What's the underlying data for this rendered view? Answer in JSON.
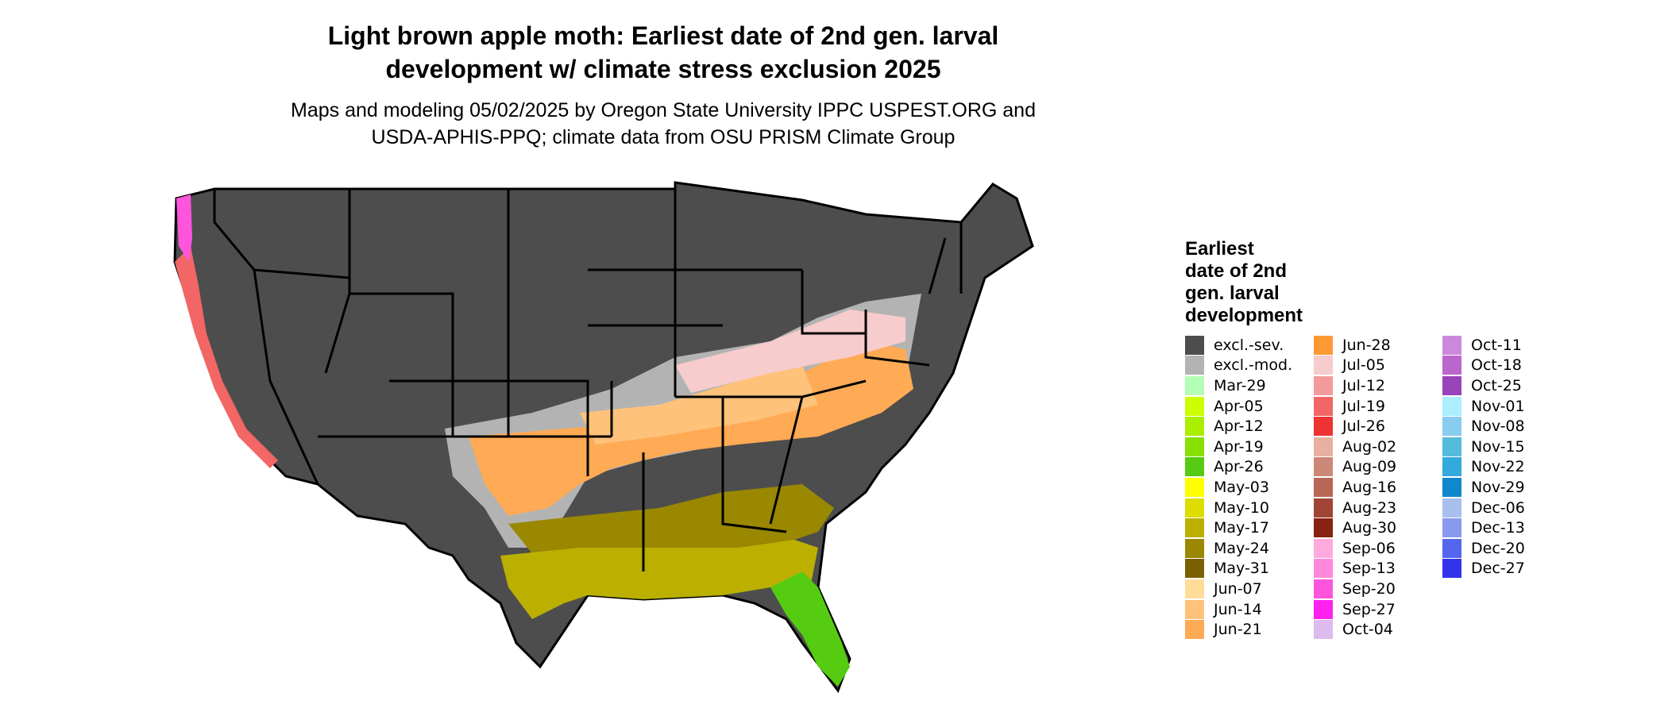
{
  "title_line1": "Light brown apple moth: Earliest date of 2nd gen. larval",
  "title_line2": "development w/ climate stress exclusion 2025",
  "subtitle_line1": "Maps and modeling 05/02/2025 by Oregon State University IPPC USPEST.ORG and",
  "subtitle_line2": "USDA-APHIS-PPQ; climate data from OSU PRISM Climate Group",
  "legend": {
    "title_lines": [
      "Earliest",
      "date of 2nd",
      "gen. larval",
      "development"
    ],
    "columns": [
      [
        {
          "label": "excl.-sev.",
          "color": "#4d4d4d"
        },
        {
          "label": "excl.-mod.",
          "color": "#b3b3b3"
        },
        {
          "label": "Mar-29",
          "color": "#b3ffb3"
        },
        {
          "label": "Apr-05",
          "color": "#ccff00"
        },
        {
          "label": "Apr-12",
          "color": "#aaee00"
        },
        {
          "label": "Apr-19",
          "color": "#88e000"
        },
        {
          "label": "Apr-26",
          "color": "#55cc11"
        },
        {
          "label": "May-03",
          "color": "#ffff00"
        },
        {
          "label": "May-10",
          "color": "#dddd00"
        },
        {
          "label": "May-17",
          "color": "#bbb000"
        },
        {
          "label": "May-24",
          "color": "#998800"
        },
        {
          "label": "May-31",
          "color": "#7a6000"
        },
        {
          "label": "Jun-07",
          "color": "#ffdd99"
        },
        {
          "label": "Jun-14",
          "color": "#ffc27a"
        },
        {
          "label": "Jun-21",
          "color": "#ffaa55"
        }
      ],
      [
        {
          "label": "Jun-28",
          "color": "#ff9933"
        },
        {
          "label": "Jul-05",
          "color": "#f7cccc"
        },
        {
          "label": "Jul-12",
          "color": "#f49a9a"
        },
        {
          "label": "Jul-19",
          "color": "#f26666"
        },
        {
          "label": "Jul-26",
          "color": "#ee3333"
        },
        {
          "label": "Aug-02",
          "color": "#e8b0a0"
        },
        {
          "label": "Aug-09",
          "color": "#cc8877"
        },
        {
          "label": "Aug-16",
          "color": "#b86655"
        },
        {
          "label": "Aug-23",
          "color": "#a04433"
        },
        {
          "label": "Aug-30",
          "color": "#882211"
        },
        {
          "label": "Sep-06",
          "color": "#ffaadd"
        },
        {
          "label": "Sep-13",
          "color": "#ff88dd"
        },
        {
          "label": "Sep-20",
          "color": "#ff55dd"
        },
        {
          "label": "Sep-27",
          "color": "#ff22ee"
        },
        {
          "label": "Oct-04",
          "color": "#ddbbee"
        }
      ],
      [
        {
          "label": "Oct-11",
          "color": "#cc88dd"
        },
        {
          "label": "Oct-18",
          "color": "#bb66cc"
        },
        {
          "label": "Oct-25",
          "color": "#9944bb"
        },
        {
          "label": "Nov-01",
          "color": "#aaeeff"
        },
        {
          "label": "Nov-08",
          "color": "#88ccee"
        },
        {
          "label": "Nov-15",
          "color": "#55bbdd"
        },
        {
          "label": "Nov-22",
          "color": "#33aadd"
        },
        {
          "label": "Nov-29",
          "color": "#1188cc"
        },
        {
          "label": "Dec-06",
          "color": "#a8c0ee"
        },
        {
          "label": "Dec-13",
          "color": "#8899ee"
        },
        {
          "label": "Dec-20",
          "color": "#5566ee"
        },
        {
          "label": "Dec-27",
          "color": "#3333ee"
        }
      ]
    ]
  }
}
